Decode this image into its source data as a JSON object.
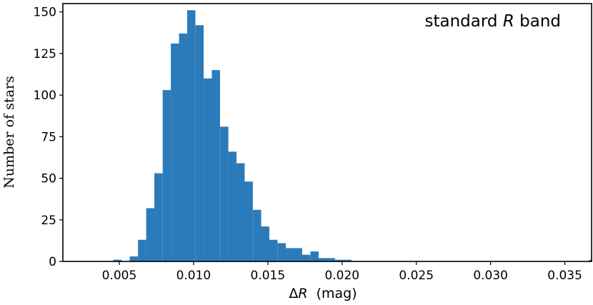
{
  "chart_data": {
    "type": "bar",
    "title": "",
    "annotation": {
      "prefix": "standard ",
      "italic": "R",
      "suffix": " band"
    },
    "xlabel": {
      "prefix": "Δ",
      "italic": "R",
      "suffix": "  (mag)"
    },
    "ylabel": "Number of stars",
    "xlim": [
      0.0012,
      0.0368
    ],
    "ylim": [
      0,
      155
    ],
    "xticks": [
      0.005,
      0.01,
      0.015,
      0.02,
      0.025,
      0.03,
      0.035
    ],
    "xtick_labels": [
      "0.005",
      "0.010",
      "0.015",
      "0.020",
      "0.025",
      "0.030",
      "0.035"
    ],
    "yticks": [
      0,
      25,
      50,
      75,
      100,
      125,
      150
    ],
    "ytick_labels": [
      "0",
      "25",
      "50",
      "75",
      "100",
      "125",
      "150"
    ],
    "bar_color": "#2b7bba",
    "bin_width": 0.000553,
    "bin_starts": [
      0.0046,
      0.00515,
      0.0057,
      0.00626,
      0.00681,
      0.00736,
      0.00792,
      0.00847,
      0.00902,
      0.00957,
      0.01013,
      0.01068,
      0.01123,
      0.01179,
      0.01234,
      0.01289,
      0.01344,
      0.014,
      0.01455,
      0.0151,
      0.01566,
      0.01621,
      0.01676,
      0.01731,
      0.01787,
      0.01842,
      0.01897,
      0.01953,
      0.02008,
      0.03663
    ],
    "counts": [
      1,
      0,
      3,
      13,
      32,
      53,
      103,
      131,
      137,
      151,
      142,
      110,
      115,
      81,
      66,
      59,
      48,
      31,
      21,
      13,
      11,
      8,
      8,
      4,
      6,
      2,
      2,
      1,
      1,
      1
    ]
  }
}
